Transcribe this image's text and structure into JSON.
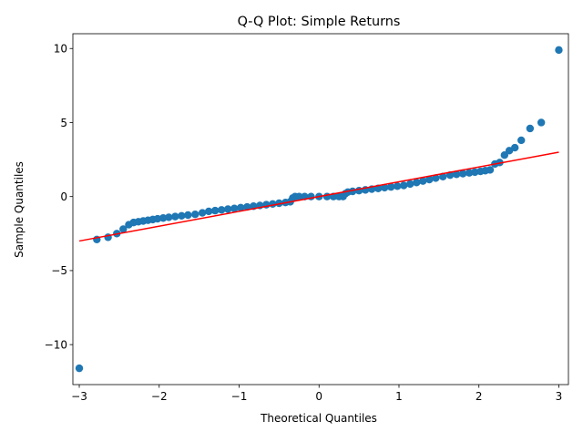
{
  "chart_data": {
    "type": "scatter",
    "title": "Q-Q Plot: Simple Returns",
    "xlabel": "Theoretical Quantiles",
    "ylabel": "Sample Quantiles",
    "xlim": [
      -3.08,
      3.12
    ],
    "ylim": [
      -12.7,
      11.0
    ],
    "x_ticks": [
      -3,
      -2,
      -1,
      0,
      1,
      2,
      3
    ],
    "y_ticks": [
      -10,
      -5,
      0,
      5,
      10
    ],
    "grid": false,
    "legend": "none",
    "colors": {
      "points": "#1f77b4",
      "reference_line": "#ff0000"
    },
    "reference_line": {
      "x": [
        -3.0,
        3.0
      ],
      "y": [
        -3.0,
        3.0
      ]
    },
    "sample_points": {
      "x": [
        -3.0,
        -2.78,
        -2.64,
        -2.53,
        -2.45,
        -2.38,
        -2.32,
        -2.26,
        -2.2,
        -2.14,
        -2.08,
        -2.02,
        -1.95,
        -1.88,
        -1.8,
        -1.72,
        -1.64,
        -1.55,
        -1.46,
        -1.38,
        -1.3,
        -1.22,
        -1.14,
        -1.06,
        -0.98,
        -0.9,
        -0.82,
        -0.74,
        -0.66,
        -0.58,
        -0.5,
        -0.42,
        -0.36,
        -0.33,
        -0.3,
        -0.25,
        -0.18,
        -0.1,
        0.0,
        0.1,
        0.18,
        0.25,
        0.3,
        0.33,
        0.36,
        0.42,
        0.5,
        0.58,
        0.66,
        0.74,
        0.82,
        0.9,
        0.98,
        1.06,
        1.14,
        1.22,
        1.3,
        1.38,
        1.46,
        1.55,
        1.64,
        1.72,
        1.8,
        1.88,
        1.95,
        2.02,
        2.08,
        2.14,
        2.2,
        2.26,
        2.32,
        2.38,
        2.45,
        2.53,
        2.64,
        2.78,
        3.0
      ],
      "y": [
        -11.6,
        -2.9,
        -2.75,
        -2.5,
        -2.2,
        -1.9,
        -1.75,
        -1.7,
        -1.65,
        -1.6,
        -1.55,
        -1.5,
        -1.45,
        -1.4,
        -1.35,
        -1.3,
        -1.25,
        -1.2,
        -1.1,
        -1.0,
        -0.95,
        -0.9,
        -0.85,
        -0.8,
        -0.75,
        -0.7,
        -0.65,
        -0.6,
        -0.55,
        -0.5,
        -0.45,
        -0.4,
        -0.35,
        -0.1,
        0.0,
        0.0,
        0.0,
        0.0,
        0.0,
        0.0,
        0.0,
        0.0,
        0.0,
        0.2,
        0.3,
        0.35,
        0.4,
        0.45,
        0.5,
        0.55,
        0.6,
        0.65,
        0.7,
        0.75,
        0.85,
        0.95,
        1.05,
        1.15,
        1.25,
        1.35,
        1.45,
        1.5,
        1.55,
        1.6,
        1.65,
        1.7,
        1.75,
        1.8,
        2.2,
        2.3,
        2.8,
        3.1,
        3.3,
        3.8,
        4.6,
        5.0,
        9.9
      ]
    }
  }
}
